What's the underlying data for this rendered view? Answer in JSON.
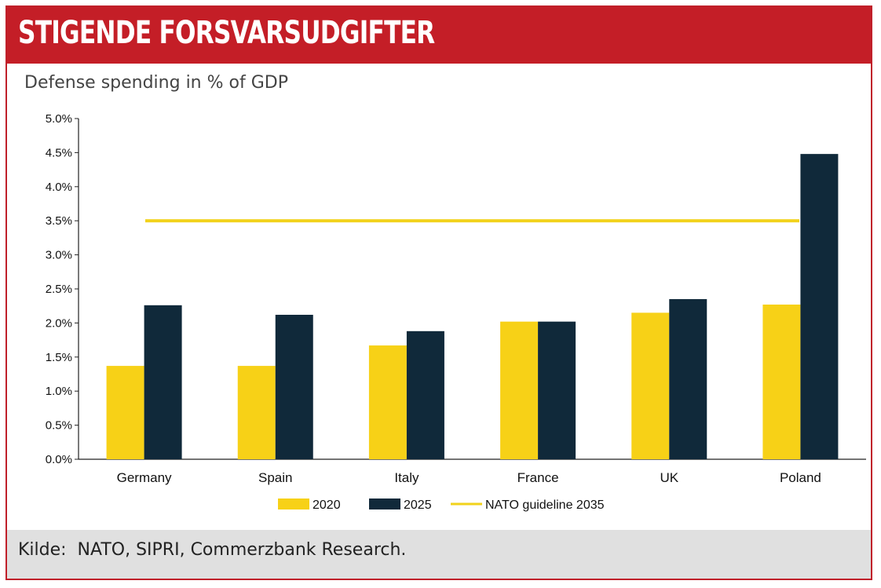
{
  "header": {
    "title": "STIGENDE FORSVARSUDGIFTER"
  },
  "footer": {
    "source": "Kilde:  NATO, SIPRI, Commerzbank Research."
  },
  "colors": {
    "series_2020": "#f7d117",
    "series_2025": "#10293a",
    "guideline": "#f2d21a",
    "header_bg": "#c41e27"
  },
  "chart_data": {
    "type": "bar",
    "title": "Defense spending in % of GDP",
    "categories": [
      "Germany",
      "Spain",
      "Italy",
      "France",
      "UK",
      "Poland"
    ],
    "series": [
      {
        "name": "2020",
        "values": [
          1.37,
          1.37,
          1.67,
          2.02,
          2.15,
          2.27
        ]
      },
      {
        "name": "2025",
        "values": [
          2.26,
          2.12,
          1.88,
          2.02,
          2.35,
          4.48
        ]
      }
    ],
    "reference_line": {
      "name": "NATO guideline 2035",
      "value": 3.5
    },
    "ylim": [
      0,
      5.0
    ],
    "yticks": [
      "0.0%",
      "0.5%",
      "1.0%",
      "1.5%",
      "2.0%",
      "2.5%",
      "3.0%",
      "3.5%",
      "4.0%",
      "4.5%",
      "5.0%"
    ],
    "legend_position": "bottom",
    "grid": false
  }
}
